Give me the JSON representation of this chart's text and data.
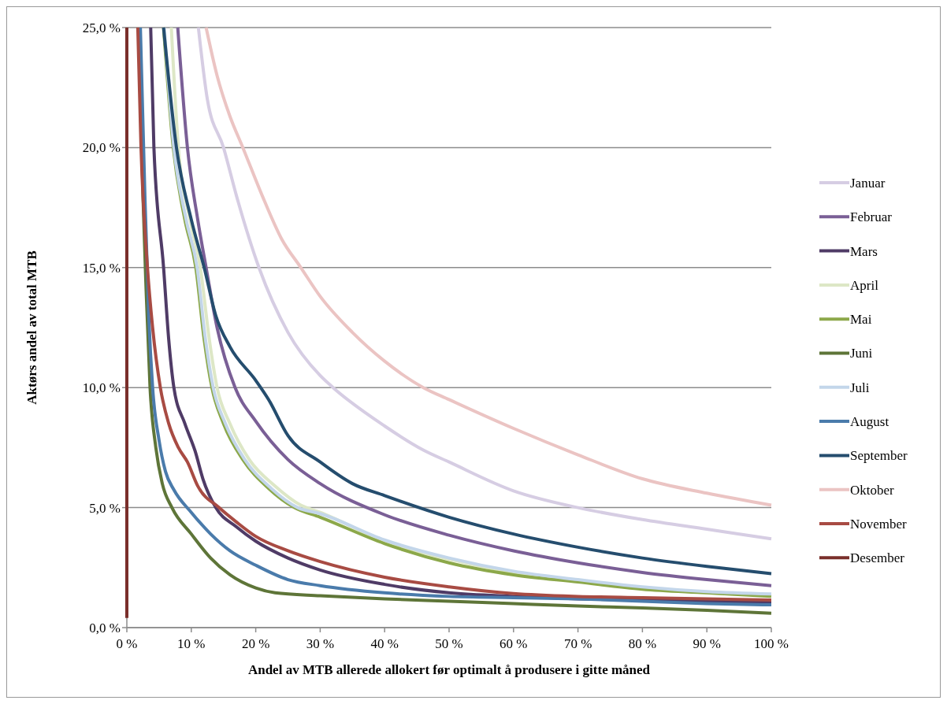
{
  "chart_data": {
    "type": "line",
    "xlabel": "Andel av MTB allerede allokert før optimalt å produsere i gitte måned",
    "ylabel": "Aktørs andel av total MTB",
    "xlim": [
      0,
      100
    ],
    "ylim": [
      0,
      25
    ],
    "xticks": [
      {
        "value": 0,
        "label": "0 %"
      },
      {
        "value": 10,
        "label": "10 %"
      },
      {
        "value": 20,
        "label": "20 %"
      },
      {
        "value": 30,
        "label": "30 %"
      },
      {
        "value": 40,
        "label": "40 %"
      },
      {
        "value": 50,
        "label": "50 %"
      },
      {
        "value": 60,
        "label": "60 %"
      },
      {
        "value": 70,
        "label": "70 %"
      },
      {
        "value": 80,
        "label": "80 %"
      },
      {
        "value": 90,
        "label": "90 %"
      },
      {
        "value": 100,
        "label": "100 %"
      }
    ],
    "yticks": [
      {
        "value": 0,
        "label": "0,0 %"
      },
      {
        "value": 5,
        "label": "5,0 %"
      },
      {
        "value": 10,
        "label": "10,0 %"
      },
      {
        "value": 15,
        "label": "15,0 %"
      },
      {
        "value": 20,
        "label": "20,0 %"
      },
      {
        "value": 25,
        "label": "25,0 %"
      }
    ],
    "grid": "y",
    "legend": "right",
    "series": [
      {
        "name": "Januar",
        "color": "#d6cde3",
        "x": [
          11.1,
          12.5,
          15,
          17,
          20.5,
          25,
          30,
          32,
          40,
          46,
          50,
          60,
          70,
          80,
          90,
          100
        ],
        "values": [
          25,
          22,
          20,
          18,
          15,
          12.3,
          10.5,
          10,
          8.4,
          7.4,
          6.9,
          5.7,
          5.0,
          4.5,
          4.1,
          3.7
        ]
      },
      {
        "name": "Februar",
        "color": "#7a5f96",
        "x": [
          7.9,
          9.4,
          11,
          12.3,
          14,
          16.8,
          20,
          25,
          30,
          40,
          50,
          60,
          70,
          80,
          90,
          100
        ],
        "values": [
          25,
          20,
          17,
          15,
          12.5,
          10,
          8.6,
          7,
          6,
          4.7,
          3.85,
          3.2,
          2.7,
          2.3,
          2.0,
          1.75
        ]
      },
      {
        "name": "Mars",
        "color": "#4f3b66",
        "x": [
          3.7,
          4.2,
          5.7,
          6.5,
          7.3,
          9,
          10.6,
          11.8,
          13.8,
          17,
          20,
          25,
          30,
          40,
          50,
          60,
          70,
          80,
          90,
          100
        ],
        "values": [
          25,
          20,
          15,
          12,
          10,
          8.5,
          7.35,
          6.2,
          5.0,
          4.2,
          3.6,
          2.9,
          2.4,
          1.8,
          1.45,
          1.3,
          1.2,
          1.15,
          1.1,
          1.05
        ]
      },
      {
        "name": "April",
        "color": "#dde7c6",
        "x": [
          6.9,
          8,
          9.8,
          11.4,
          12.8,
          14,
          16,
          19,
          23,
          27,
          30,
          40,
          50,
          60,
          70,
          80,
          90,
          100
        ],
        "values": [
          25,
          20,
          17,
          15,
          12,
          10,
          8.5,
          7,
          5.9,
          5.1,
          4.8,
          3.6,
          2.85,
          2.3,
          1.95,
          1.65,
          1.45,
          1.35
        ]
      },
      {
        "name": "Mai",
        "color": "#8ca84a",
        "x": [
          5.7,
          7.2,
          9,
          10.7,
          12,
          13.2,
          15,
          18,
          22,
          26,
          30,
          40,
          50,
          60,
          70,
          80,
          90,
          100
        ],
        "values": [
          25,
          20,
          17,
          15,
          12,
          10,
          8.5,
          7,
          5.8,
          5.0,
          4.6,
          3.5,
          2.7,
          2.2,
          1.9,
          1.6,
          1.45,
          1.3
        ]
      },
      {
        "name": "Juni",
        "color": "#5e7538",
        "x": [
          1.9,
          2.5,
          3,
          3.6,
          4.5,
          5.5,
          7,
          10,
          13,
          16,
          20,
          23,
          30,
          40,
          50,
          60,
          70,
          80,
          90,
          100
        ],
        "values": [
          25,
          18,
          14,
          10,
          7.5,
          6,
          5,
          3.9,
          2.9,
          2.2,
          1.65,
          1.45,
          1.33,
          1.2,
          1.1,
          1.0,
          0.9,
          0.82,
          0.72,
          0.6
        ]
      },
      {
        "name": "Juli",
        "color": "#c3d6ea",
        "x": [
          5.8,
          7.3,
          9.2,
          10.9,
          12.2,
          13.4,
          15.3,
          18.3,
          22.4,
          26.5,
          30,
          40,
          50,
          60,
          70,
          80,
          90,
          100
        ],
        "values": [
          25,
          20,
          17,
          15,
          12,
          10,
          8.5,
          7,
          5.8,
          5.0,
          4.75,
          3.65,
          2.9,
          2.35,
          2.0,
          1.7,
          1.5,
          1.4
        ]
      },
      {
        "name": "August",
        "color": "#4a7bab",
        "x": [
          2.1,
          2.8,
          3.4,
          4,
          5,
          6,
          7.3,
          10,
          13,
          16,
          20,
          25,
          30,
          40,
          50,
          60,
          70,
          80,
          90,
          100
        ],
        "values": [
          25,
          18,
          13,
          10,
          7.8,
          6.5,
          5.74,
          4.8,
          3.9,
          3.2,
          2.6,
          2.0,
          1.75,
          1.45,
          1.3,
          1.25,
          1.2,
          1.1,
          1.0,
          0.95
        ]
      },
      {
        "name": "September",
        "color": "#254d6e",
        "x": [
          5.7,
          7.7,
          10,
          12,
          13.8,
          16,
          20,
          22,
          25,
          30,
          35,
          40,
          50,
          60,
          70,
          80,
          90,
          100
        ],
        "values": [
          25,
          20,
          17,
          15,
          13,
          11.7,
          10.3,
          9.5,
          8,
          6.9,
          6,
          5.5,
          4.6,
          3.9,
          3.35,
          2.9,
          2.55,
          2.25
        ]
      },
      {
        "name": "Oktober",
        "color": "#ebc4c3",
        "x": [
          12.3,
          14,
          16,
          18,
          21,
          24,
          27,
          30,
          35,
          40,
          46,
          50,
          60,
          70,
          80,
          90,
          100
        ],
        "values": [
          25,
          23,
          21.3,
          20,
          18,
          16.2,
          15,
          13.8,
          12.3,
          11.1,
          10,
          9.5,
          8.3,
          7.2,
          6.2,
          5.6,
          5.1
        ]
      },
      {
        "name": "November",
        "color": "#a84b43",
        "x": [
          1.7,
          2.2,
          3.2,
          4,
          5.2,
          6.5,
          8,
          9.4,
          11,
          14.3,
          17,
          20,
          25,
          30,
          40,
          50,
          60,
          70,
          80,
          90,
          100
        ],
        "values": [
          25,
          20,
          15,
          12.5,
          10,
          8.5,
          7.5,
          6.9,
          5.9,
          5.0,
          4.4,
          3.8,
          3.2,
          2.75,
          2.1,
          1.7,
          1.42,
          1.3,
          1.25,
          1.2,
          1.15
        ]
      },
      {
        "name": "Desember",
        "color": "#7a2f2b",
        "x": [
          0,
          0,
          0
        ],
        "values": [
          0.4,
          12.5,
          25
        ]
      }
    ]
  }
}
